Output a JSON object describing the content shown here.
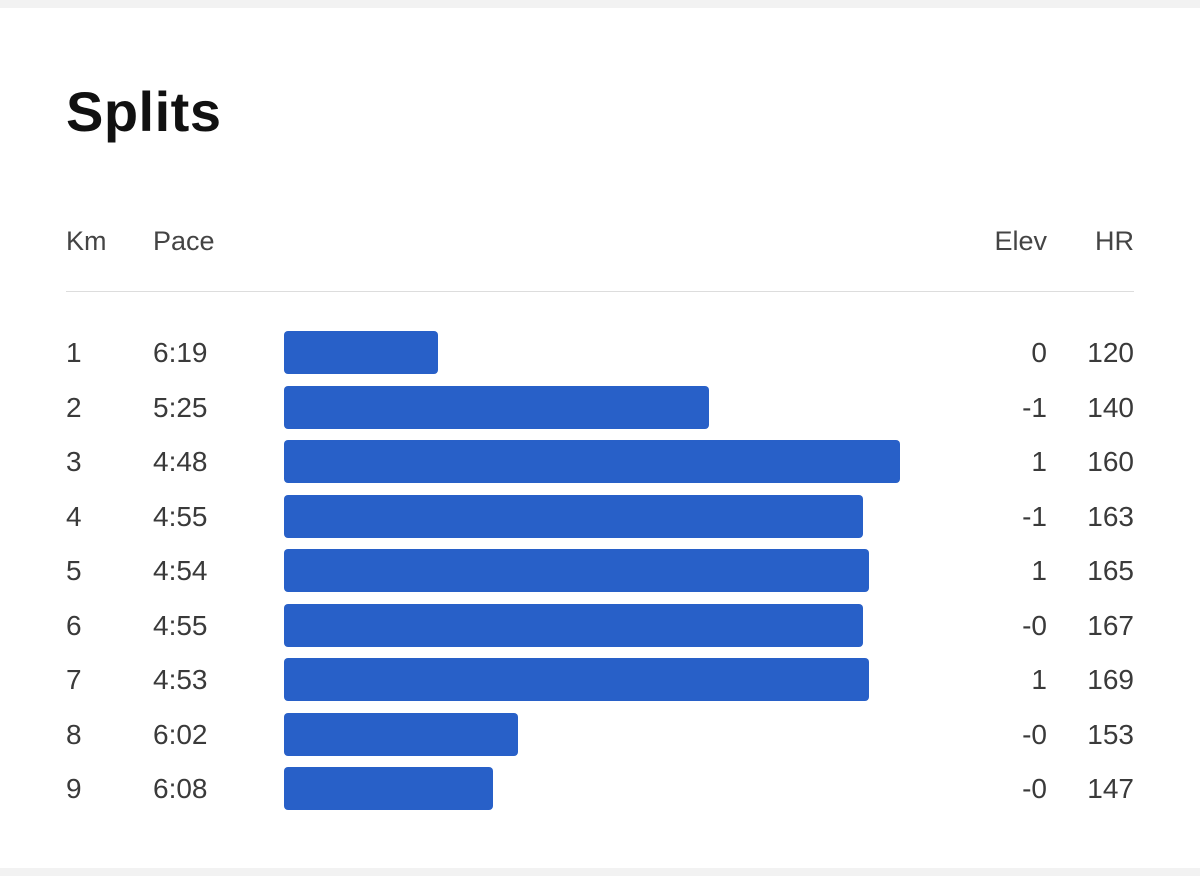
{
  "title": "Splits",
  "headers": {
    "km": "Km",
    "pace": "Pace",
    "elev": "Elev",
    "hr": "HR"
  },
  "bar_color": "#2860c8",
  "splits": [
    {
      "km": "1",
      "pace": "6:19",
      "elev": "0",
      "hr": "120",
      "pace_bar_fraction": 0.25
    },
    {
      "km": "2",
      "pace": "5:25",
      "elev": "-1",
      "hr": "140",
      "pace_bar_fraction": 0.69
    },
    {
      "km": "3",
      "pace": "4:48",
      "elev": "1",
      "hr": "160",
      "pace_bar_fraction": 1.0
    },
    {
      "km": "4",
      "pace": "4:55",
      "elev": "-1",
      "hr": "163",
      "pace_bar_fraction": 0.94
    },
    {
      "km": "5",
      "pace": "4:54",
      "elev": "1",
      "hr": "165",
      "pace_bar_fraction": 0.95
    },
    {
      "km": "6",
      "pace": "4:55",
      "elev": "-0",
      "hr": "167",
      "pace_bar_fraction": 0.94
    },
    {
      "km": "7",
      "pace": "4:53",
      "elev": "1",
      "hr": "169",
      "pace_bar_fraction": 0.95
    },
    {
      "km": "8",
      "pace": "6:02",
      "elev": "-0",
      "hr": "153",
      "pace_bar_fraction": 0.38
    },
    {
      "km": "9",
      "pace": "6:08",
      "elev": "-0",
      "hr": "147",
      "pace_bar_fraction": 0.34
    }
  ]
}
